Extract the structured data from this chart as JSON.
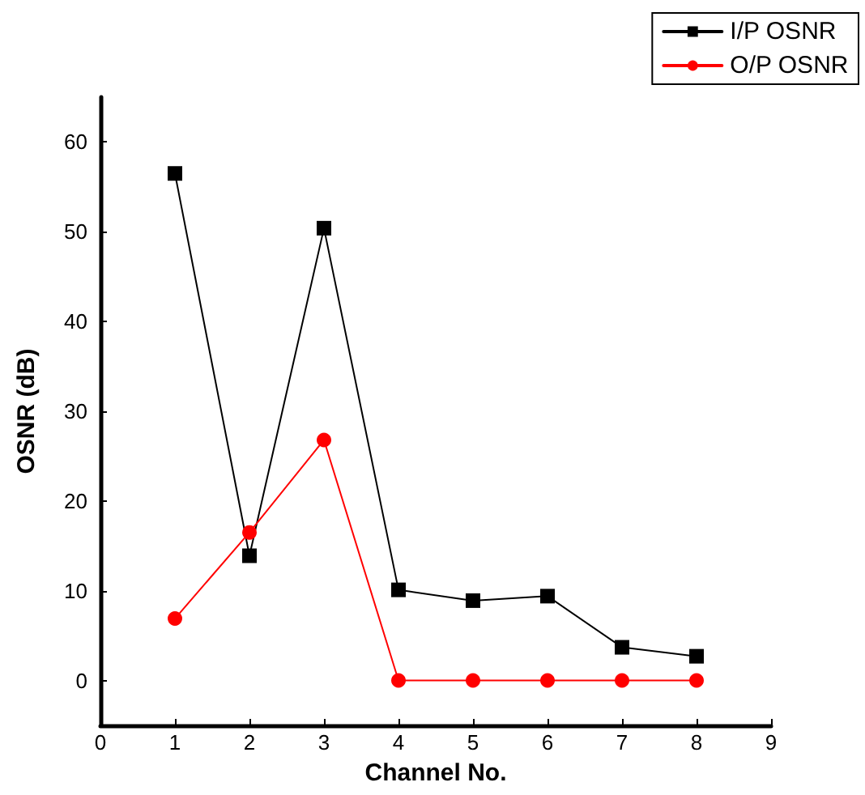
{
  "chart_data": {
    "type": "line",
    "xlabel": "Channel No.",
    "ylabel": "OSNR (dB)",
    "x": [
      1,
      2,
      3,
      4,
      5,
      6,
      7,
      8
    ],
    "series": [
      {
        "name": "I/P OSNR",
        "color": "#000000",
        "marker": "square",
        "values": [
          56.5,
          13.9,
          50.4,
          10.1,
          8.9,
          9.4,
          3.7,
          2.7
        ]
      },
      {
        "name": "O/P OSNR",
        "color": "#ff0000",
        "marker": "circle",
        "values": [
          6.9,
          16.5,
          26.8,
          0,
          0,
          0,
          0,
          0
        ]
      }
    ],
    "xlim": [
      0,
      9
    ],
    "xticks": [
      0,
      1,
      2,
      3,
      4,
      5,
      6,
      7,
      8,
      9
    ],
    "ylim": [
      -5,
      65
    ],
    "yticks": [
      0,
      10,
      20,
      30,
      40,
      50,
      60
    ],
    "grid": false,
    "legend": "top right",
    "line_style": "solid"
  }
}
